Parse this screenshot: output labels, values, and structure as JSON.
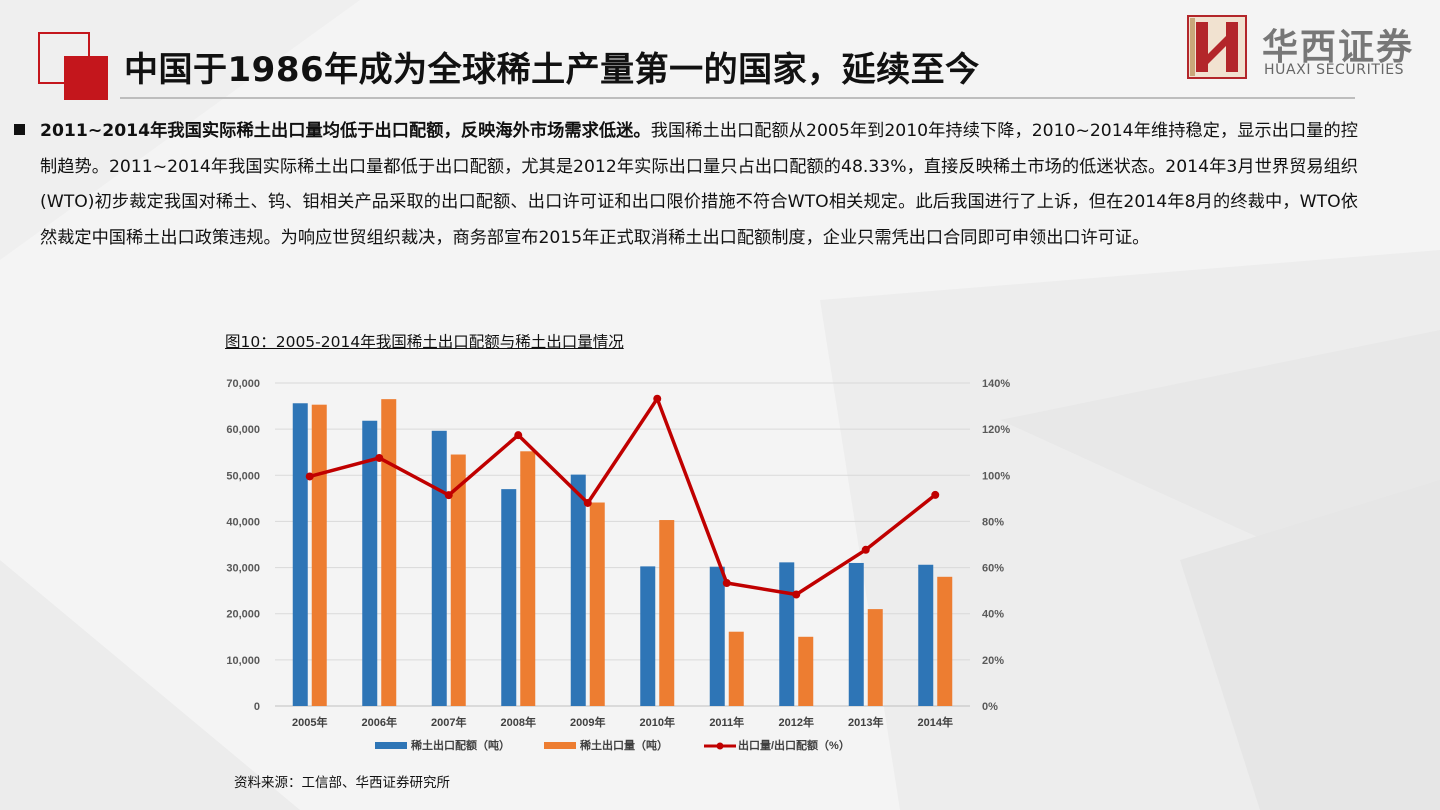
{
  "header": {
    "title": "中国于1986年成为全球稀土产量第一的国家，延续至今"
  },
  "logo": {
    "name_cn": "华西证券",
    "name_en": "HUAXI SECURITIES",
    "mark_letter": "H"
  },
  "body": {
    "lead_bold": "2011~2014年我国实际稀土出口量均低于出口配额，反映海外市场需求低迷。",
    "text": "我国稀土出口配额从2005年到2010年持续下降，2010~2014年维持稳定，显示出口量的控制趋势。2011~2014年我国实际稀土出口量都低于出口配额，尤其是2012年实际出口量只占出口配额的48.33%，直接反映稀土市场的低迷状态。2014年3月世界贸易组织(WTO)初步裁定我国对稀土、钨、钼相关产品采取的出口配额、出口许可证和出口限价措施不符合WTO相关规定。此后我国进行了上诉，但在2014年8月的终裁中，WTO依然裁定中国稀土出口政策违规。为响应世贸组织裁决，商务部宣布2015年正式取消稀土出口配额制度，企业只需凭出口合同即可申领出口许可证。"
  },
  "figure": {
    "caption": "图10：2005-2014年我国稀土出口配额与稀土出口量情况",
    "source": "资料来源：工信部、华西证券研究所"
  },
  "colors": {
    "brand_red": "#c4161c",
    "quota_bar": "#2e75b6",
    "export_bar": "#ed7d31",
    "ratio_line": "#c00000"
  },
  "chart_data": {
    "type": "bar",
    "categories": [
      "2005年",
      "2006年",
      "2007年",
      "2008年",
      "2009年",
      "2010年",
      "2011年",
      "2012年",
      "2013年",
      "2014年"
    ],
    "series": [
      {
        "name": "稀土出口配额（吨）",
        "type": "bar",
        "axis": "left",
        "values": [
          65609,
          61821,
          59643,
          47000,
          50145,
          30258,
          30184,
          31130,
          30999,
          30611
        ]
      },
      {
        "name": "稀土出口量（吨）",
        "type": "bar",
        "axis": "right-none",
        "values": [
          65300,
          66500,
          54500,
          55200,
          44100,
          40300,
          16100,
          15000,
          21000,
          28000
        ]
      },
      {
        "name": "出口量/出口配额（%）",
        "type": "line",
        "axis": "right",
        "values": [
          99.5,
          107.5,
          91.4,
          117.4,
          88.0,
          133.2,
          53.3,
          48.33,
          67.7,
          91.5
        ]
      }
    ],
    "left_axis": {
      "min": 0,
      "max": 70000,
      "step": 10000,
      "ticks": [
        "0",
        "10,000",
        "20,000",
        "30,000",
        "40,000",
        "50,000",
        "60,000",
        "70,000"
      ]
    },
    "right_axis": {
      "min": 0,
      "max": 140,
      "step": 20,
      "ticks": [
        "0%",
        "20%",
        "40%",
        "60%",
        "80%",
        "100%",
        "120%",
        "140%"
      ]
    },
    "grid": true,
    "legend_position": "bottom"
  }
}
